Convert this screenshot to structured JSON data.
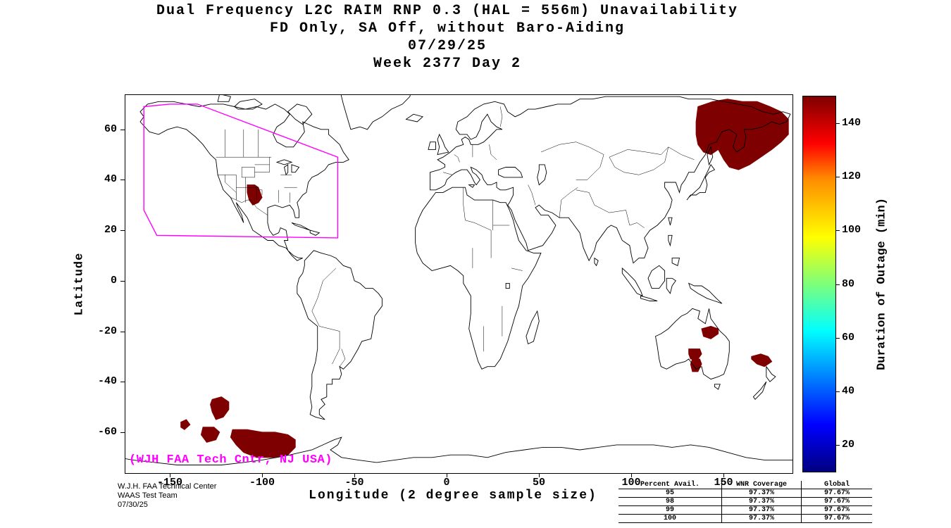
{
  "title": {
    "line1": "Dual Frequency L2C RAIM RNP 0.3 (HAL = 556m) Unavailability",
    "line2": "FD Only, SA Off, without Baro-Aiding",
    "line3": "07/29/25",
    "line4": "Week 2377 Day 2"
  },
  "axes": {
    "xlabel": "Longitude (2 degree sample size)",
    "ylabel": "Latitude",
    "x_ticks": [
      -150,
      -100,
      -50,
      0,
      50,
      100,
      150
    ],
    "y_ticks": [
      -60,
      -40,
      -20,
      0,
      20,
      40,
      60
    ],
    "x_range": [
      -174,
      187.2
    ],
    "y_range": [
      -76.2,
      73.6
    ]
  },
  "colorbar": {
    "label": "Duration of Outage (min)",
    "ticks": [
      20,
      40,
      60,
      80,
      100,
      120,
      140
    ],
    "min": 10,
    "max": 150,
    "colormap": "jet"
  },
  "watermark": "(WJH FAA Tech Cntr, NJ USA)",
  "footer": {
    "line1": "W.J.H. FAA Technical Center",
    "line2": "WAAS Test Team",
    "line3": "07/30/25"
  },
  "stats_table": {
    "header": [
      "Percent Avail.",
      "WNR Coverage",
      "Global"
    ],
    "rows": [
      [
        "95",
        "97.37%",
        "97.67%"
      ],
      [
        "98",
        "97.37%",
        "97.67%"
      ],
      [
        "99",
        "97.37%",
        "97.67%"
      ],
      [
        "100",
        "97.37%",
        "97.67%"
      ]
    ]
  },
  "chart_data": {
    "type": "heatmap",
    "projection": "equirectangular",
    "title": "Dual Frequency L2C RAIM RNP 0.3 (HAL = 556m) Unavailability",
    "subtitle": "FD Only, SA Off, without Baro-Aiding",
    "date": "07/29/25",
    "gps_week": "Week 2377 Day 2",
    "xlabel": "Longitude (2 degree sample size)",
    "ylabel": "Latitude",
    "xlim": [
      -174,
      187.2
    ],
    "ylim": [
      -76.2,
      73.6
    ],
    "value_label": "Duration of Outage (min)",
    "value_range": [
      10,
      150
    ],
    "outage_color": "#7f0000",
    "outage_regions": [
      {
        "name": "southwest-us",
        "approx_value_min": 150,
        "polygon": [
          [
            -108,
            38
          ],
          [
            -104,
            38
          ],
          [
            -102,
            37
          ],
          [
            -101,
            35
          ],
          [
            -100,
            33
          ],
          [
            -102,
            31
          ],
          [
            -105,
            30
          ],
          [
            -107,
            32
          ],
          [
            -108,
            35
          ]
        ]
      },
      {
        "name": "northeast-asia",
        "approx_value_min": 150,
        "polygon": [
          [
            136,
            69
          ],
          [
            144,
            71
          ],
          [
            152,
            72
          ],
          [
            160,
            71
          ],
          [
            168,
            71
          ],
          [
            175,
            69
          ],
          [
            181,
            67
          ],
          [
            185,
            64
          ],
          [
            185,
            58
          ],
          [
            181,
            55
          ],
          [
            176,
            52
          ],
          [
            170,
            49
          ],
          [
            164,
            46
          ],
          [
            158,
            44
          ],
          [
            153,
            45
          ],
          [
            150,
            48
          ],
          [
            147,
            52
          ],
          [
            143,
            50
          ],
          [
            139,
            51
          ],
          [
            136,
            54
          ],
          [
            135,
            58
          ],
          [
            135,
            63
          ]
        ]
      },
      {
        "name": "queensland-australia",
        "approx_value_min": 150,
        "polygon": [
          [
            138,
            -19
          ],
          [
            143,
            -18
          ],
          [
            147,
            -19
          ],
          [
            147,
            -21
          ],
          [
            143,
            -23
          ],
          [
            139,
            -22
          ]
        ]
      },
      {
        "name": "south-australia-upper",
        "approx_value_min": 150,
        "polygon": [
          [
            131,
            -27
          ],
          [
            137,
            -27
          ],
          [
            138,
            -29
          ],
          [
            136,
            -31
          ],
          [
            132,
            -31
          ],
          [
            131,
            -29
          ]
        ]
      },
      {
        "name": "south-australia-lower",
        "approx_value_min": 150,
        "polygon": [
          [
            133,
            -31
          ],
          [
            137,
            -31
          ],
          [
            138,
            -33
          ],
          [
            136,
            -36
          ],
          [
            133,
            -36
          ],
          [
            132,
            -33
          ]
        ]
      },
      {
        "name": "tasman-sea",
        "approx_value_min": 150,
        "polygon": [
          [
            165,
            -30
          ],
          [
            170,
            -29
          ],
          [
            174,
            -30
          ],
          [
            176,
            -32
          ],
          [
            172,
            -34
          ],
          [
            168,
            -33
          ],
          [
            165,
            -31
          ]
        ]
      },
      {
        "name": "south-pacific-small",
        "approx_value_min": 150,
        "polygon": [
          [
            -144,
            -56
          ],
          [
            -141,
            -55
          ],
          [
            -139,
            -57
          ],
          [
            -142,
            -59
          ],
          [
            -144,
            -58
          ]
        ]
      },
      {
        "name": "south-pacific-mid",
        "approx_value_min": 150,
        "polygon": [
          [
            -127,
            -47
          ],
          [
            -122,
            -46
          ],
          [
            -118,
            -48
          ],
          [
            -118,
            -51
          ],
          [
            -121,
            -54
          ],
          [
            -125,
            -55
          ],
          [
            -127,
            -52
          ],
          [
            -128,
            -49
          ]
        ]
      },
      {
        "name": "south-pacific-lower",
        "approx_value_min": 150,
        "polygon": [
          [
            -132,
            -58
          ],
          [
            -126,
            -58
          ],
          [
            -123,
            -60
          ],
          [
            -125,
            -63
          ],
          [
            -130,
            -64
          ],
          [
            -133,
            -61
          ]
        ]
      },
      {
        "name": "southern-ocean-large",
        "approx_value_min": 150,
        "polygon": [
          [
            -116,
            -59
          ],
          [
            -108,
            -59
          ],
          [
            -100,
            -60
          ],
          [
            -93,
            -60
          ],
          [
            -86,
            -61
          ],
          [
            -82,
            -63
          ],
          [
            -82,
            -66
          ],
          [
            -86,
            -69
          ],
          [
            -94,
            -70
          ],
          [
            -103,
            -70
          ],
          [
            -110,
            -68
          ],
          [
            -114,
            -65
          ],
          [
            -117,
            -62
          ]
        ]
      }
    ],
    "coverage_boundary": {
      "name": "waas-service-volume",
      "color": "#ff00ff",
      "polygon": [
        [
          -164,
          69
        ],
        [
          -150,
          70
        ],
        [
          -135,
          70
        ],
        [
          -59,
          49
        ],
        [
          -59,
          17
        ],
        [
          -157,
          18
        ],
        [
          -164,
          28
        ]
      ]
    }
  }
}
